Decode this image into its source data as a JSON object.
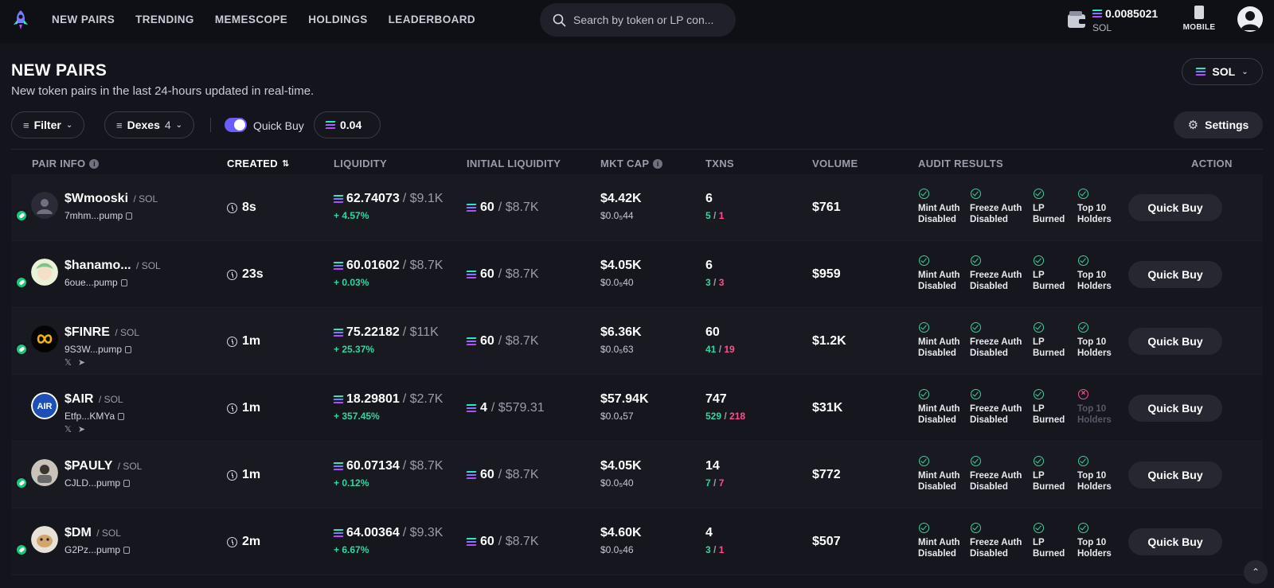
{
  "nav": {
    "links": [
      "NEW PAIRS",
      "TRENDING",
      "MEMESCOPE",
      "HOLDINGS",
      "LEADERBOARD"
    ],
    "search_placeholder": "Search by token or LP con...",
    "wallet_balance": "0.0085021",
    "wallet_currency": "SOL",
    "mobile_label": "MOBILE"
  },
  "header": {
    "title": "NEW PAIRS",
    "subtitle": "New token pairs in the last 24-hours updated in real-time.",
    "chain_select": "SOL"
  },
  "toolbar": {
    "filter_label": "Filter",
    "dexes_label": "Dexes",
    "dexes_count": "4",
    "quick_buy_label": "Quick Buy",
    "quick_buy_amount": "0.04",
    "settings_label": "Settings"
  },
  "columns": [
    "PAIR INFO",
    "CREATED",
    "LIQUIDITY",
    "INITIAL LIQUIDITY",
    "MKT CAP",
    "TXNS",
    "VOLUME",
    "AUDIT RESULTS",
    "ACTION"
  ],
  "audit_labels": {
    "mint": [
      "Mint Auth",
      "Disabled"
    ],
    "freeze": [
      "Freeze Auth",
      "Disabled"
    ],
    "lp": [
      "LP",
      "Burned"
    ],
    "top10": [
      "Top 10",
      "Holders"
    ]
  },
  "rows": [
    {
      "name": "$Wmooski",
      "chain": "/ SOL",
      "addr": "7mhm...pump",
      "created": "8s",
      "liq_sol": "62.74073",
      "liq_usd": "/ $9.1K",
      "liq_chg": "+ 4.57%",
      "init_sol": "60",
      "init_usd": "/ $8.7K",
      "mcap": "$4.42K",
      "price": "$0.0₅44",
      "txns": "6",
      "buys": "5",
      "sells": "1",
      "volume": "$761",
      "top10_ok": true,
      "socials": false,
      "action": "Quick Buy"
    },
    {
      "name": "$hanamo...",
      "chain": "/ SOL",
      "addr": "6oue...pump",
      "created": "23s",
      "liq_sol": "60.01602",
      "liq_usd": "/ $8.7K",
      "liq_chg": "+ 0.03%",
      "init_sol": "60",
      "init_usd": "/ $8.7K",
      "mcap": "$4.05K",
      "price": "$0.0₅40",
      "txns": "6",
      "buys": "3",
      "sells": "3",
      "volume": "$959",
      "top10_ok": true,
      "socials": false,
      "action": "Quick Buy"
    },
    {
      "name": "$FINRE",
      "chain": "/ SOL",
      "addr": "9S3W...pump",
      "created": "1m",
      "liq_sol": "75.22182",
      "liq_usd": "/ $11K",
      "liq_chg": "+ 25.37%",
      "init_sol": "60",
      "init_usd": "/ $8.7K",
      "mcap": "$6.36K",
      "price": "$0.0₅63",
      "txns": "60",
      "buys": "41",
      "sells": "19",
      "volume": "$1.2K",
      "top10_ok": true,
      "socials": true,
      "action": "Quick Buy"
    },
    {
      "name": "$AIR",
      "chain": "/ SOL",
      "addr": "Etfp...KMYa",
      "created": "1m",
      "liq_sol": "18.29801",
      "liq_usd": "/ $2.7K",
      "liq_chg": "+ 357.45%",
      "init_sol": "4",
      "init_usd": "/ $579.31",
      "mcap": "$57.94K",
      "price": "$0.0₄57",
      "txns": "747",
      "buys": "529",
      "sells": "218",
      "volume": "$31K",
      "top10_ok": false,
      "socials": true,
      "action": "Quick Buy"
    },
    {
      "name": "$PAULY",
      "chain": "/ SOL",
      "addr": "CJLD...pump",
      "created": "1m",
      "liq_sol": "60.07134",
      "liq_usd": "/ $8.7K",
      "liq_chg": "+ 0.12%",
      "init_sol": "60",
      "init_usd": "/ $8.7K",
      "mcap": "$4.05K",
      "price": "$0.0₅40",
      "txns": "14",
      "buys": "7",
      "sells": "7",
      "volume": "$772",
      "top10_ok": true,
      "socials": false,
      "action": "Quick Buy"
    },
    {
      "name": "$DM",
      "chain": "/ SOL",
      "addr": "G2Pz...pump",
      "created": "2m",
      "liq_sol": "64.00364",
      "liq_usd": "/ $9.3K",
      "liq_chg": "+ 6.67%",
      "init_sol": "60",
      "init_usd": "/ $8.7K",
      "mcap": "$4.60K",
      "price": "$0.0₅46",
      "txns": "4",
      "buys": "3",
      "sells": "1",
      "volume": "$507",
      "top10_ok": true,
      "socials": false,
      "action": "Quick Buy"
    }
  ],
  "colors": {
    "accent": "#6a5cff",
    "buy_green": "#33d6a2",
    "sell_pink": "#ff4f8b",
    "background": "#13141c"
  }
}
